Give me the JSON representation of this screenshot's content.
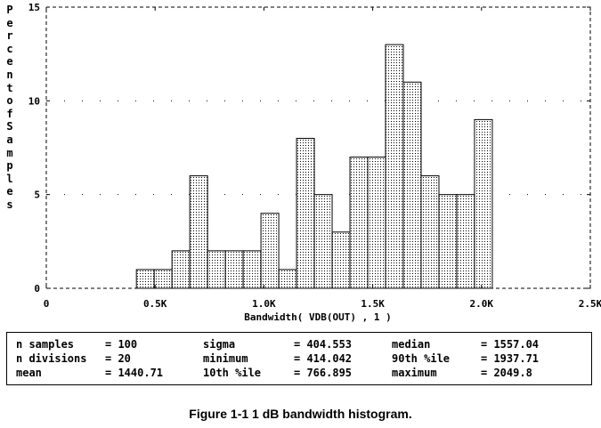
{
  "chart_data": {
    "type": "bar",
    "xlabel": "Bandwidth( VDB(OUT) , 1 )",
    "ylabel": "Percent of Samples",
    "xlim": [
      0,
      2500
    ],
    "ylim": [
      0,
      15
    ],
    "x_ticks": [
      "0",
      "0.5K",
      "1.0K",
      "1.5K",
      "2.0K",
      "2.5K"
    ],
    "x_tick_values": [
      0,
      500,
      1000,
      1500,
      2000,
      2500
    ],
    "y_ticks": [
      "0",
      "5",
      "10",
      "15"
    ],
    "y_tick_values": [
      0,
      5,
      10,
      15
    ],
    "grid": "dotted",
    "bin_start": 414.042,
    "bin_width": 81.78,
    "values": [
      1,
      1,
      2,
      6,
      2,
      2,
      2,
      4,
      1,
      8,
      5,
      3,
      7,
      7,
      13,
      11,
      6,
      5,
      5,
      9
    ]
  },
  "stats": {
    "rows": [
      [
        {
          "label": "n samples",
          "value": "100"
        },
        {
          "label": "sigma",
          "value": "404.553"
        },
        {
          "label": "median",
          "value": "1557.04"
        }
      ],
      [
        {
          "label": "n divisions",
          "value": "20"
        },
        {
          "label": "minimum",
          "value": "414.042"
        },
        {
          "label": "90th %ile",
          "value": "1937.71"
        }
      ],
      [
        {
          "label": "mean",
          "value": "1440.71"
        },
        {
          "label": "10th %ile",
          "value": "766.895"
        },
        {
          "label": "maximum",
          "value": "2049.8"
        }
      ]
    ]
  },
  "caption": "Figure 1-1  1 dB bandwidth histogram."
}
